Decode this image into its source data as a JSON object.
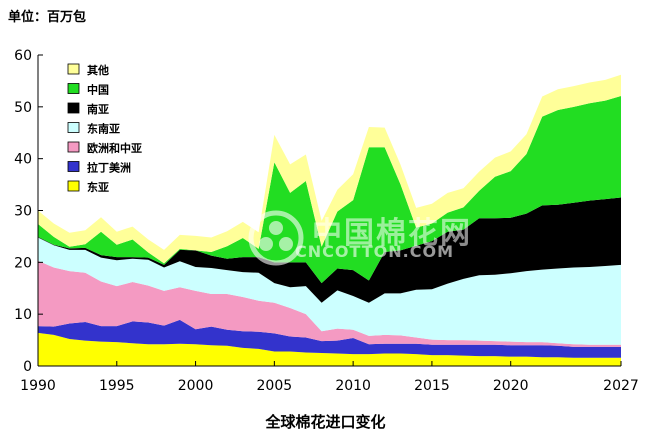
{
  "unit_label": "单位：百万包",
  "chart_data": {
    "type": "area",
    "title": "全球棉花进口变化",
    "ylabel": "单位：百万包",
    "xlabel": "",
    "xlim": [
      1990,
      2027
    ],
    "ylim": [
      0,
      60
    ],
    "x_ticks": [
      1990,
      1995,
      2000,
      2005,
      2010,
      2015,
      2020,
      2027
    ],
    "y_ticks": [
      0,
      10,
      20,
      30,
      40,
      50,
      60
    ],
    "legend_position": "top-left",
    "stacked": true,
    "x": [
      1990,
      1991,
      1992,
      1993,
      1994,
      1995,
      1996,
      1997,
      1998,
      1999,
      2000,
      2001,
      2002,
      2003,
      2004,
      2005,
      2006,
      2007,
      2008,
      2009,
      2010,
      2011,
      2012,
      2013,
      2014,
      2015,
      2016,
      2017,
      2018,
      2019,
      2020,
      2021,
      2022,
      2023,
      2024,
      2025,
      2026,
      2027
    ],
    "series": [
      {
        "name": "东亚",
        "color": "#ffff00",
        "values": [
          6.4,
          6.0,
          5.2,
          4.9,
          4.7,
          4.6,
          4.4,
          4.2,
          4.2,
          4.3,
          4.2,
          4.0,
          3.9,
          3.5,
          3.3,
          2.8,
          2.8,
          2.6,
          2.5,
          2.4,
          2.3,
          2.3,
          2.4,
          2.4,
          2.3,
          2.1,
          2.1,
          2.0,
          1.9,
          1.9,
          1.8,
          1.8,
          1.7,
          1.7,
          1.6,
          1.6,
          1.6,
          1.6
        ]
      },
      {
        "name": "拉丁美洲",
        "color": "#3333cc",
        "values": [
          1.3,
          1.6,
          3.0,
          3.6,
          3.0,
          3.1,
          4.2,
          4.2,
          3.6,
          4.6,
          2.9,
          3.6,
          3.1,
          3.2,
          3.3,
          3.5,
          2.9,
          2.9,
          2.3,
          2.5,
          3.1,
          1.9,
          1.9,
          1.9,
          2.0,
          2.0,
          2.0,
          2.1,
          2.2,
          2.2,
          2.2,
          2.2,
          2.3,
          2.2,
          2.1,
          2.1,
          2.1,
          2.1
        ]
      },
      {
        "name": "欧洲和中亚",
        "color": "#f49ac2",
        "values": [
          12.6,
          11.4,
          10.1,
          9.5,
          8.6,
          7.7,
          7.6,
          7.1,
          6.7,
          6.3,
          7.4,
          6.3,
          6.9,
          6.6,
          6.0,
          5.9,
          5.5,
          4.5,
          1.9,
          2.3,
          1.6,
          1.6,
          1.7,
          1.6,
          1.2,
          1.0,
          0.9,
          0.9,
          0.8,
          0.7,
          0.7,
          0.6,
          0.6,
          0.5,
          0.5,
          0.4,
          0.4,
          0.4
        ]
      },
      {
        "name": "东南亚",
        "color": "#ccffff",
        "values": [
          4.5,
          4.3,
          4.1,
          4.4,
          4.6,
          5.0,
          4.5,
          5.0,
          4.5,
          5.0,
          4.6,
          5.0,
          4.6,
          4.8,
          5.4,
          3.8,
          4.0,
          5.4,
          5.5,
          7.4,
          6.5,
          6.4,
          8.0,
          8.1,
          9.2,
          9.7,
          10.9,
          11.8,
          12.6,
          12.8,
          13.2,
          13.7,
          14.0,
          14.4,
          14.8,
          15.0,
          15.2,
          15.4
        ]
      },
      {
        "name": "南亚",
        "color": "#000000",
        "values": [
          0.1,
          0.1,
          0.3,
          0.4,
          0.5,
          0.6,
          0.3,
          0.4,
          0.5,
          2.2,
          3.2,
          2.4,
          2.2,
          2.9,
          3.0,
          4.0,
          4.8,
          4.6,
          3.8,
          4.2,
          5.0,
          4.3,
          8.0,
          8.3,
          8.5,
          9.3,
          10.0,
          9.5,
          11.0,
          10.9,
          10.7,
          11.1,
          12.4,
          12.3,
          12.5,
          12.8,
          12.9,
          13.0
        ]
      },
      {
        "name": "中国",
        "color": "#22dd22",
        "values": [
          2.5,
          1.5,
          0.3,
          0.7,
          4.5,
          2.4,
          3.4,
          1.0,
          0.3,
          0.2,
          0.0,
          0.7,
          2.4,
          3.7,
          1.6,
          19.3,
          13.4,
          15.7,
          7.0,
          11.0,
          13.5,
          25.7,
          20.2,
          12.8,
          3.5,
          3.4,
          3.7,
          4.3,
          5.3,
          8.0,
          9.0,
          11.5,
          17.1,
          18.3,
          18.5,
          18.8,
          19.0,
          19.6
        ]
      },
      {
        "name": "其他",
        "color": "#ffff99",
        "values": [
          2.6,
          2.6,
          2.7,
          2.7,
          2.8,
          2.5,
          2.5,
          2.5,
          2.6,
          2.7,
          2.8,
          2.8,
          2.9,
          3.1,
          3.2,
          5.3,
          5.5,
          5.1,
          5.0,
          4.2,
          5.0,
          3.9,
          3.8,
          3.8,
          3.8,
          3.8,
          3.8,
          3.7,
          3.7,
          3.7,
          3.8,
          3.8,
          3.9,
          4.0,
          4.0,
          4.0,
          4.0,
          4.1
        ]
      }
    ]
  },
  "watermark": {
    "cn": "中国棉花网",
    "en": "CNCOTTON.COM"
  }
}
